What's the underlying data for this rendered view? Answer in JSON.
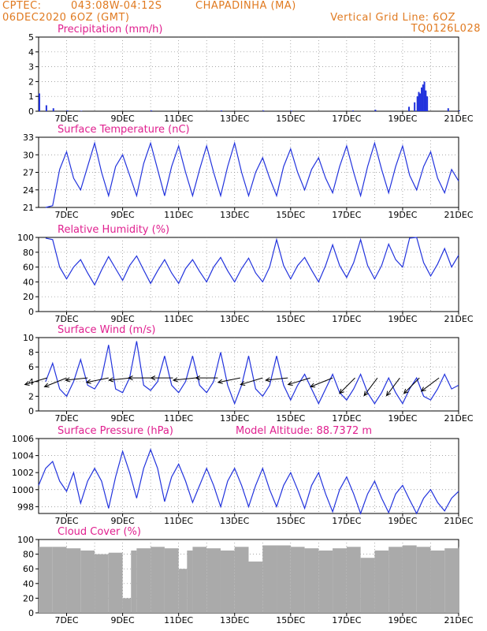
{
  "header": {
    "source": "CPTEC:",
    "coords": "043:08W-04:12S",
    "station": "CHAPADINHA (MA)",
    "run": "06DEC2020 6OZ (GMT)",
    "grid_note": "Vertical Grid Line: 6OZ",
    "model": "TQ0126L028"
  },
  "colors": {
    "header": "#e07a20",
    "title": "#e0208f",
    "line": "#2233dd",
    "cloud": "#aaaaaa",
    "frame": "#000000"
  },
  "x_ticks": [
    "7DEC",
    "9DEC",
    "11DEC",
    "13DEC",
    "15DEC",
    "17DEC",
    "19DEC",
    "21DEC"
  ],
  "chart_data": [
    {
      "type": "bar",
      "title": "Precipitation (mm/h)",
      "ylim": [
        0,
        5
      ],
      "yticks": [
        0,
        1,
        2,
        3,
        4,
        5
      ],
      "x_unit": "days after 06DEC2020 00Z",
      "xlim": [
        0,
        15
      ],
      "x": [
        0.0,
        0.25,
        0.5,
        1.0,
        1.5,
        4.0,
        6.5,
        8.0,
        9.0,
        11.2,
        12.0,
        13.2,
        13.4,
        13.5,
        13.55,
        13.6,
        13.65,
        13.7,
        13.75,
        13.8,
        13.85,
        14.6,
        15.0
      ],
      "values": [
        1.2,
        0.4,
        0.2,
        0.05,
        0.03,
        0.05,
        0.05,
        0.05,
        0.04,
        0.05,
        0.1,
        0.3,
        0.6,
        1.0,
        1.3,
        1.2,
        1.6,
        1.8,
        2.0,
        1.4,
        1.0,
        0.2,
        0.05
      ]
    },
    {
      "type": "line",
      "title": "Surface Temperature (nC)",
      "ylim": [
        21,
        33
      ],
      "yticks": [
        21,
        24,
        27,
        30,
        33
      ],
      "x_unit": "days after 06DEC2020 00Z",
      "xlim": [
        0,
        15
      ],
      "x": [
        0.25,
        0.5,
        0.75,
        1.0,
        1.25,
        1.5,
        1.75,
        2.0,
        2.25,
        2.5,
        2.75,
        3.0,
        3.25,
        3.5,
        3.75,
        4.0,
        4.25,
        4.5,
        4.75,
        5.0,
        5.25,
        5.5,
        5.75,
        6.0,
        6.25,
        6.5,
        6.75,
        7.0,
        7.25,
        7.5,
        7.75,
        8.0,
        8.25,
        8.5,
        8.75,
        9.0,
        9.25,
        9.5,
        9.75,
        10.0,
        10.25,
        10.5,
        10.75,
        11.0,
        11.25,
        11.5,
        11.75,
        12.0,
        12.25,
        12.5,
        12.75,
        13.0,
        13.25,
        13.5,
        13.75,
        14.0,
        14.25,
        14.5,
        14.75,
        15.0
      ],
      "values": [
        21.0,
        21.3,
        27.5,
        30.5,
        26.0,
        24.0,
        28.0,
        32.0,
        27.0,
        23.0,
        28.0,
        30.0,
        26.5,
        23.0,
        28.5,
        32.0,
        27.5,
        23.0,
        28.0,
        31.5,
        27.0,
        23.0,
        27.5,
        31.5,
        27.0,
        23.0,
        28.0,
        32.0,
        27.0,
        23.0,
        27.0,
        29.5,
        26.0,
        23.0,
        28.0,
        31.0,
        27.0,
        24.0,
        27.5,
        29.5,
        26.0,
        23.5,
        28.0,
        31.5,
        27.0,
        23.0,
        28.0,
        32.0,
        27.5,
        23.5,
        28.0,
        31.5,
        26.5,
        24.0,
        28.0,
        30.5,
        26.0,
        23.5,
        27.5,
        25.5
      ]
    },
    {
      "type": "line",
      "title": "Relative Humidity (%)",
      "ylim": [
        0,
        100
      ],
      "yticks": [
        0,
        20,
        40,
        60,
        80,
        100
      ],
      "x_unit": "days after 06DEC2020 00Z",
      "xlim": [
        0,
        15
      ],
      "x": [
        0.25,
        0.5,
        0.75,
        1.0,
        1.25,
        1.5,
        1.75,
        2.0,
        2.25,
        2.5,
        2.75,
        3.0,
        3.25,
        3.5,
        3.75,
        4.0,
        4.25,
        4.5,
        4.75,
        5.0,
        5.25,
        5.5,
        5.75,
        6.0,
        6.25,
        6.5,
        6.75,
        7.0,
        7.25,
        7.5,
        7.75,
        8.0,
        8.25,
        8.5,
        8.75,
        9.0,
        9.25,
        9.5,
        9.75,
        10.0,
        10.25,
        10.5,
        10.75,
        11.0,
        11.25,
        11.5,
        11.75,
        12.0,
        12.25,
        12.5,
        12.75,
        13.0,
        13.25,
        13.5,
        13.75,
        14.0,
        14.25,
        14.5,
        14.75,
        15.0
      ],
      "values": [
        99,
        97,
        60,
        44,
        60,
        70,
        52,
        36,
        56,
        74,
        58,
        42,
        62,
        75,
        56,
        38,
        55,
        70,
        52,
        38,
        58,
        70,
        54,
        40,
        60,
        73,
        55,
        40,
        58,
        72,
        52,
        40,
        60,
        97,
        62,
        44,
        62,
        73,
        56,
        40,
        62,
        90,
        62,
        46,
        66,
        97,
        62,
        44,
        62,
        91,
        70,
        60,
        99,
        100,
        66,
        48,
        64,
        85,
        60,
        76
      ]
    },
    {
      "type": "line",
      "title": "Surface Wind (m/s)",
      "ylim": [
        0,
        10
      ],
      "yticks": [
        0,
        2,
        4,
        6,
        8,
        10
      ],
      "x_unit": "days after 06DEC2020 00Z",
      "xlim": [
        0,
        15
      ],
      "x": [
        0.25,
        0.5,
        0.75,
        1.0,
        1.25,
        1.5,
        1.75,
        2.0,
        2.25,
        2.5,
        2.75,
        3.0,
        3.25,
        3.5,
        3.75,
        4.0,
        4.25,
        4.5,
        4.75,
        5.0,
        5.25,
        5.5,
        5.75,
        6.0,
        6.25,
        6.5,
        6.75,
        7.0,
        7.25,
        7.5,
        7.75,
        8.0,
        8.25,
        8.5,
        8.75,
        9.0,
        9.25,
        9.5,
        9.75,
        10.0,
        10.25,
        10.5,
        10.75,
        11.0,
        11.25,
        11.5,
        11.75,
        12.0,
        12.25,
        12.5,
        12.75,
        13.0,
        13.25,
        13.5,
        13.75,
        14.0,
        14.25,
        14.5,
        14.75,
        15.0
      ],
      "values": [
        4.0,
        6.5,
        3.0,
        2.0,
        4.0,
        7.0,
        3.5,
        3.0,
        4.5,
        9.0,
        3.0,
        2.5,
        4.5,
        9.5,
        3.5,
        2.8,
        4.0,
        7.5,
        3.5,
        2.5,
        4.0,
        7.5,
        3.5,
        2.5,
        4.0,
        8.0,
        3.5,
        1.0,
        3.5,
        7.5,
        3.0,
        2.0,
        3.5,
        7.5,
        3.5,
        1.5,
        3.5,
        5.0,
        3.0,
        1.0,
        3.0,
        5.0,
        2.5,
        1.5,
        3.0,
        5.0,
        2.5,
        1.0,
        2.5,
        4.5,
        2.5,
        1.0,
        3.0,
        4.5,
        2.0,
        1.5,
        3.0,
        5.0,
        3.0,
        3.5
      ],
      "arrows": [
        {
          "x": 0.3,
          "dx": -1,
          "dy": 0.3
        },
        {
          "x": 1.0,
          "dx": -1,
          "dy": 0.4
        },
        {
          "x": 1.75,
          "dx": -1,
          "dy": 0.1
        },
        {
          "x": 2.5,
          "dx": -1,
          "dy": 0.2
        },
        {
          "x": 3.3,
          "dx": -1,
          "dy": 0.1
        },
        {
          "x": 4.0,
          "dx": -1,
          "dy": 0.0
        },
        {
          "x": 4.8,
          "dx": -1,
          "dy": 0.0
        },
        {
          "x": 5.6,
          "dx": -1,
          "dy": 0.1
        },
        {
          "x": 6.4,
          "dx": -1,
          "dy": 0.0
        },
        {
          "x": 7.2,
          "dx": -1,
          "dy": 0.2
        },
        {
          "x": 8.0,
          "dx": -1,
          "dy": 0.3
        },
        {
          "x": 8.9,
          "dx": -1,
          "dy": 0.1
        },
        {
          "x": 9.7,
          "dx": -1,
          "dy": 0.3
        },
        {
          "x": 10.5,
          "dx": -1,
          "dy": 0.4
        },
        {
          "x": 11.3,
          "dx": -0.7,
          "dy": 0.7
        },
        {
          "x": 12.1,
          "dx": -0.6,
          "dy": 0.8
        },
        {
          "x": 12.9,
          "dx": -0.6,
          "dy": 0.8
        },
        {
          "x": 13.6,
          "dx": -0.7,
          "dy": 0.7
        },
        {
          "x": 14.3,
          "dx": -0.8,
          "dy": 0.6
        }
      ]
    },
    {
      "type": "line",
      "title": "Surface Pressure (hPa)",
      "subtitle": "Model Altitude: 88.7372 m",
      "ylim": [
        997.2,
        1006
      ],
      "yticks": [
        998,
        1000,
        1002,
        1004,
        1006
      ],
      "x_unit": "days after 06DEC2020 00Z",
      "xlim": [
        0,
        15
      ],
      "x": [
        0.0,
        0.25,
        0.5,
        0.75,
        1.0,
        1.25,
        1.5,
        1.75,
        2.0,
        2.25,
        2.5,
        2.75,
        3.0,
        3.25,
        3.5,
        3.75,
        4.0,
        4.25,
        4.5,
        4.75,
        5.0,
        5.25,
        5.5,
        5.75,
        6.0,
        6.25,
        6.5,
        6.75,
        7.0,
        7.25,
        7.5,
        7.75,
        8.0,
        8.25,
        8.5,
        8.75,
        9.0,
        9.25,
        9.5,
        9.75,
        10.0,
        10.25,
        10.5,
        10.75,
        11.0,
        11.25,
        11.5,
        11.75,
        12.0,
        12.25,
        12.5,
        12.75,
        13.0,
        13.25,
        13.5,
        13.75,
        14.0,
        14.25,
        14.5,
        14.75,
        15.0
      ],
      "values": [
        1000.5,
        1002.5,
        1003.3,
        1001.0,
        999.8,
        1002.0,
        998.4,
        1001.0,
        1002.5,
        1001.0,
        997.8,
        1001.5,
        1004.5,
        1002.0,
        999.0,
        1002.5,
        1004.7,
        1002.5,
        998.6,
        1001.5,
        1003.0,
        1001.0,
        998.5,
        1000.5,
        1002.5,
        1000.5,
        998.0,
        1001.0,
        1002.5,
        1000.5,
        998.0,
        1000.5,
        1002.5,
        1000.0,
        998.0,
        1000.5,
        1002.0,
        1000.0,
        997.8,
        1000.5,
        1002.0,
        999.5,
        997.4,
        1000.0,
        1001.5,
        999.5,
        997.2,
        999.5,
        1001.0,
        999.0,
        997.3,
        999.5,
        1000.5,
        998.8,
        997.2,
        999.0,
        1000.0,
        998.5,
        997.5,
        999.0,
        999.8
      ]
    },
    {
      "type": "bar",
      "title": "Cloud Cover (%)",
      "ylim": [
        0,
        100
      ],
      "yticks": [
        0,
        20,
        40,
        60,
        80,
        100
      ],
      "x_unit": "days after 06DEC2020 00Z",
      "xlim": [
        0,
        15
      ],
      "x": [
        0.0,
        0.5,
        1.0,
        1.5,
        2.0,
        2.5,
        3.0,
        3.3,
        3.5,
        4.0,
        4.5,
        5.0,
        5.3,
        5.5,
        6.0,
        6.5,
        7.0,
        7.5,
        8.0,
        8.5,
        9.0,
        9.5,
        10.0,
        10.5,
        11.0,
        11.5,
        12.0,
        12.5,
        13.0,
        13.5,
        14.0,
        14.5,
        15.0
      ],
      "values": [
        90,
        90,
        88,
        85,
        80,
        82,
        20,
        85,
        88,
        90,
        88,
        60,
        85,
        90,
        88,
        85,
        90,
        70,
        92,
        92,
        90,
        88,
        85,
        88,
        90,
        75,
        85,
        90,
        92,
        90,
        85,
        88,
        90
      ]
    }
  ]
}
